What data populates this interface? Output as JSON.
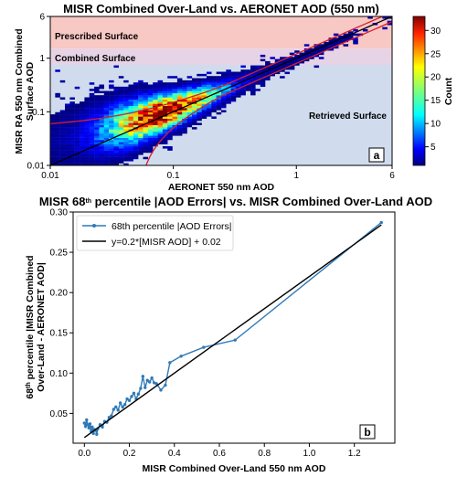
{
  "chart_data": [
    {
      "type": "heatmap",
      "title": "MISR Combined Over-Land vs. AERONET AOD (550 nm)",
      "xlabel": "AERONET 550 nm AOD",
      "ylabel": "MISR RA 550 nm Combined Surface AOD",
      "ylabel_lines": [
        "MISR RA 550 nm Combined",
        "Surface AOD"
      ],
      "xscale": "log",
      "yscale": "log",
      "xlim": [
        0.01,
        6
      ],
      "ylim": [
        0.01,
        6
      ],
      "x_ticks": [
        {
          "value": 0.01,
          "label": "0.01"
        },
        {
          "value": 0.1,
          "label": "0.1"
        },
        {
          "value": 1,
          "label": "1"
        },
        {
          "value": 6,
          "label": "6"
        }
      ],
      "y_ticks": [
        {
          "value": 0.01,
          "label": "0.01"
        },
        {
          "value": 0.1,
          "label": "0.1"
        },
        {
          "value": 1,
          "label": "1"
        },
        {
          "value": 6,
          "label": "6"
        }
      ],
      "regions": [
        {
          "name": "Prescribed Surface",
          "y_range": [
            1.5,
            6
          ],
          "color": "#f8c8c4"
        },
        {
          "name": "Combined Surface",
          "y_range": [
            0.75,
            1.5
          ],
          "color": "#e7d3e6"
        },
        {
          "name": "Retrieved Surface",
          "y_range": [
            0.01,
            0.75
          ],
          "color": "#d0dcee"
        }
      ],
      "colorbar": {
        "label": "Count",
        "range": [
          1,
          33
        ],
        "ticks": [
          5,
          10,
          15,
          20,
          25,
          30
        ],
        "colormap": "jet"
      },
      "lines": [
        {
          "name": "1:1",
          "color": "#000000",
          "style": "solid"
        },
        {
          "name": "envelope",
          "color": "#d81e2a",
          "style": "solid"
        }
      ],
      "panel_label": "a"
    },
    {
      "type": "line",
      "title": "MISR 68th percentile |AOD Errors| vs. MISR Combined Over-Land AOD",
      "title_parts": {
        "pre": "MISR 68",
        "sup": "th",
        "post": " percentile |AOD Errors| vs. MISR Combined Over-Land AOD"
      },
      "xlabel": "MISR Combined Over-Land 550 nm AOD",
      "ylabel_lines": [
        {
          "pre": "68",
          "sup": "th",
          "post": " percentile |MISR Combined"
        },
        {
          "pre": "Over-Land - AERONET AOD|",
          "sup": "",
          "post": ""
        }
      ],
      "xlim": [
        -0.05,
        1.38
      ],
      "ylim": [
        0.013,
        0.3
      ],
      "x_ticks": [
        0.0,
        0.2,
        0.4,
        0.6,
        0.8,
        1.0,
        1.2
      ],
      "y_ticks": [
        0.05,
        0.1,
        0.15,
        0.2,
        0.25,
        0.3
      ],
      "legend_position": "top-left",
      "panel_label": "b",
      "series": [
        {
          "name": "68th percentile |AOD Errors|",
          "color": "#2f7ab8",
          "x": [
            0.0,
            0.005,
            0.01,
            0.015,
            0.02,
            0.025,
            0.03,
            0.035,
            0.04,
            0.045,
            0.05,
            0.055,
            0.06,
            0.07,
            0.08,
            0.09,
            0.1,
            0.11,
            0.12,
            0.13,
            0.14,
            0.15,
            0.16,
            0.17,
            0.18,
            0.19,
            0.2,
            0.21,
            0.22,
            0.23,
            0.24,
            0.25,
            0.26,
            0.27,
            0.28,
            0.29,
            0.3,
            0.31,
            0.32,
            0.34,
            0.36,
            0.38,
            0.43,
            0.53,
            0.67,
            1.32
          ],
          "y": [
            0.038,
            0.034,
            0.042,
            0.036,
            0.032,
            0.037,
            0.028,
            0.033,
            0.025,
            0.03,
            0.029,
            0.024,
            0.031,
            0.036,
            0.033,
            0.04,
            0.039,
            0.045,
            0.047,
            0.055,
            0.058,
            0.054,
            0.063,
            0.058,
            0.061,
            0.068,
            0.066,
            0.071,
            0.075,
            0.068,
            0.074,
            0.081,
            0.096,
            0.082,
            0.091,
            0.089,
            0.094,
            0.088,
            0.087,
            0.079,
            0.085,
            0.113,
            0.121,
            0.132,
            0.141,
            0.287
          ]
        },
        {
          "name": "y=0.2*[MISR AOD] + 0.02",
          "color": "#000000",
          "x": [
            0.0,
            1.32
          ],
          "y": [
            0.02,
            0.284
          ]
        }
      ]
    }
  ]
}
